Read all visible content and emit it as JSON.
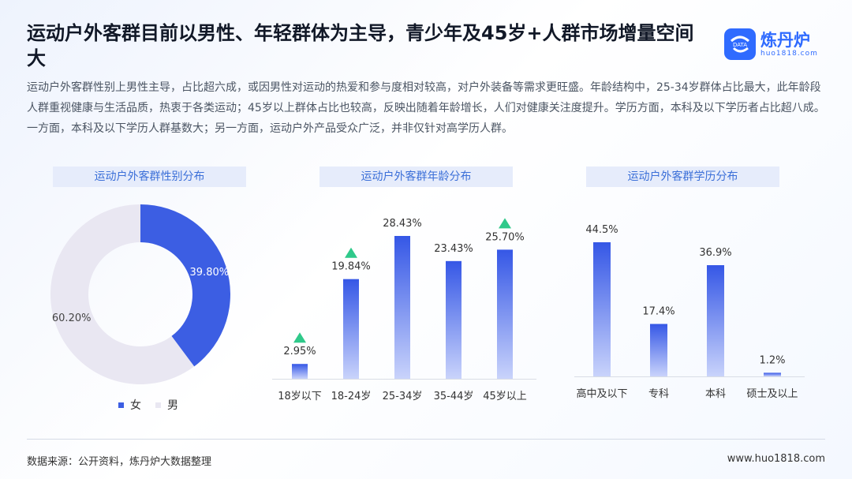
{
  "title": "运动户外客群目前以男性、年轻群体为主导，青少年及45岁+人群市场增量空间大",
  "logo": {
    "name": "炼丹炉",
    "url": "huo1818.com",
    "badge": "DATA"
  },
  "description": "运动户外客群性别上男性主导，占比超六成，或因男性对运动的热爱和参与度相对较高，对户外装备等需求更旺盛。年龄结构中，25-34岁群体占比最大，此年龄段人群重视健康与生活品质，热衷于各类运动；45岁以上群体占比也较高，反映出随着年龄增长，人们对健康关注度提升。学历方面，本科及以下学历者占比超八成。一方面，本科及以下学历人群基数大；另一方面，运动户外产品受众广泛，并非仅针对高学历人群。",
  "chart_data": [
    {
      "type": "pie",
      "title": "运动户外客群性别分布",
      "categories": [
        "女",
        "男"
      ],
      "values": [
        39.8,
        60.2
      ],
      "labels": [
        "39.80%",
        "60.20%"
      ],
      "colors": [
        "#3c5ee3",
        "#e9e7f2"
      ],
      "legend": "bottom"
    },
    {
      "type": "bar",
      "title": "运动户外客群年龄分布",
      "categories": [
        "18岁以下",
        "18-24岁",
        "25-34岁",
        "35-44岁",
        "45岁以上"
      ],
      "values": [
        2.95,
        19.84,
        28.43,
        23.43,
        25.7
      ],
      "labels": [
        "2.95%",
        "19.84%",
        "28.43%",
        "23.43%",
        "25.70%"
      ],
      "highlighted": [
        "18岁以下",
        "18-24岁",
        "45岁以上"
      ],
      "highlight_color": "#2fc98a",
      "bar_color": "#3d5fe6",
      "grid": false
    },
    {
      "type": "bar",
      "title": "运动户外客群学历分布",
      "categories": [
        "高中及以下",
        "专科",
        "本科",
        "硕士及以上"
      ],
      "values": [
        44.5,
        17.4,
        36.9,
        1.2
      ],
      "labels": [
        "44.5%",
        "17.4%",
        "36.9%",
        "1.2%"
      ],
      "bar_color": "#3d5fe6",
      "grid": false
    }
  ],
  "source": "数据来源：公开资料，炼丹炉大数据整理",
  "site": "www.huo1818.com"
}
